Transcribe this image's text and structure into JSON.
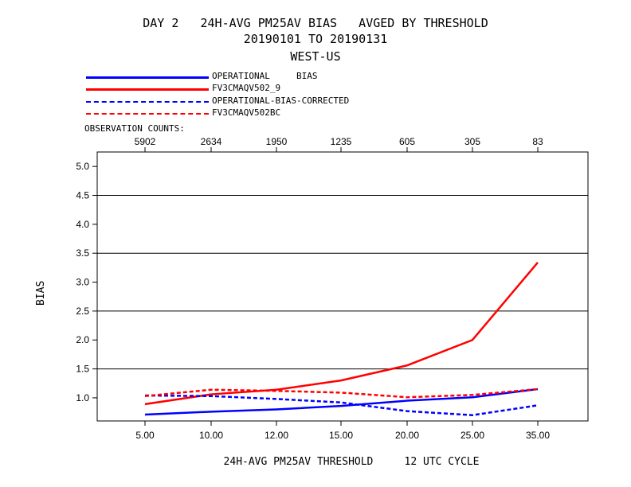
{
  "header": {
    "title_line1": "DAY 2   24H-AVG PM25AV BIAS   AVGED BY THRESHOLD",
    "title_line2": "20190101 TO 20190131",
    "title_line3": "WEST-US"
  },
  "legend": [
    {
      "label": "OPERATIONAL     BIAS",
      "color": "#0000ff",
      "style": "solid"
    },
    {
      "label": "FV3CMAQV502_9",
      "color": "#ff0000",
      "style": "solid"
    },
    {
      "label": "OPERATIONAL-BIAS-CORRECTED",
      "color": "#0000ff",
      "style": "dashed"
    },
    {
      "label": "FV3CMAQV502BC",
      "color": "#ff0000",
      "style": "dashed"
    }
  ],
  "observation_counts_label": "OBSERVATION COUNTS:",
  "footer": {
    "xlabel": "24H-AVG PM25AV THRESHOLD     12 UTC CYCLE"
  },
  "chart_data": {
    "type": "line",
    "categories": [
      "5.00",
      "10.00",
      "12.00",
      "15.00",
      "20.00",
      "25.00",
      "35.00"
    ],
    "observation_counts": [
      "5902",
      "2634",
      "1950",
      "1235",
      "605",
      "305",
      "83"
    ],
    "ylabel": "BIAS",
    "xlabel": "24H-AVG PM25AV THRESHOLD     12 UTC CYCLE",
    "ylim": [
      0.6,
      5.25
    ],
    "yticks": [
      "1.0",
      "1.5",
      "2.0",
      "2.5",
      "3.0",
      "3.5",
      "4.0",
      "4.5",
      "5.0"
    ],
    "gridlines": [
      1.5,
      2.5,
      3.5,
      4.5
    ],
    "series": [
      {
        "name": "OPERATIONAL     BIAS",
        "color": "#0000ff",
        "style": "solid",
        "values": [
          0.71,
          0.76,
          0.8,
          0.86,
          0.95,
          1.01,
          1.15
        ]
      },
      {
        "name": "FV3CMAQV502_9",
        "color": "#ff0000",
        "style": "solid",
        "values": [
          0.89,
          1.06,
          1.14,
          1.3,
          1.56,
          2.0,
          3.34
        ]
      },
      {
        "name": "OPERATIONAL-BIAS-CORRECTED",
        "color": "#0000ff",
        "style": "dashed",
        "values": [
          1.04,
          1.03,
          0.98,
          0.92,
          0.77,
          0.7,
          0.87
        ]
      },
      {
        "name": "FV3CMAQV502BC",
        "color": "#ff0000",
        "style": "dashed",
        "values": [
          1.03,
          1.14,
          1.12,
          1.09,
          1.01,
          1.05,
          1.15
        ]
      }
    ]
  }
}
